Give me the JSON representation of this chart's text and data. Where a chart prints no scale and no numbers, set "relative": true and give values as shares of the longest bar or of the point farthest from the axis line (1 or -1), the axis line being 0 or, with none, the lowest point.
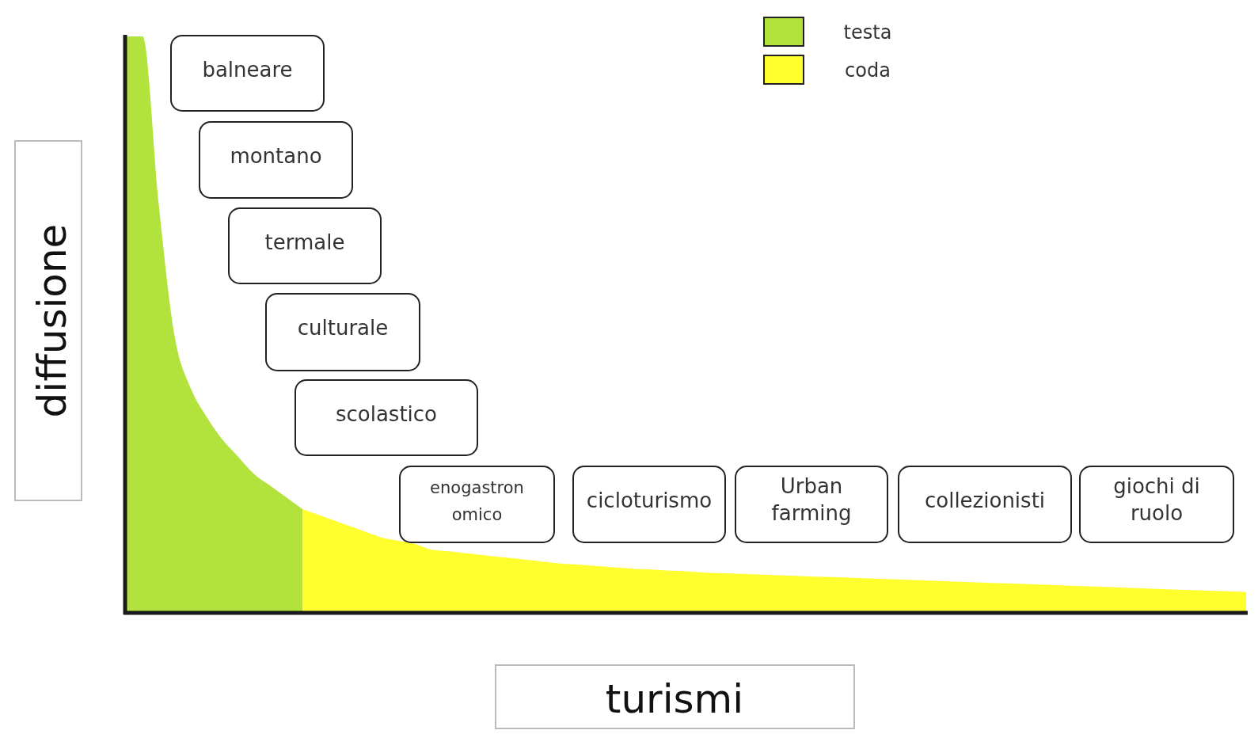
{
  "chart_data": {
    "type": "area",
    "relative": true,
    "xlabel": "turismi",
    "ylabel": "diffusione",
    "legend": "top right",
    "categories": [
      null,
      null,
      null,
      null,
      null,
      null,
      null,
      null,
      null,
      null,
      null,
      null,
      null,
      null,
      null,
      null,
      null,
      null,
      null,
      null,
      null,
      null,
      null,
      null,
      null,
      null,
      null,
      null,
      null,
      null,
      null,
      null,
      null,
      null,
      null,
      null,
      null,
      null,
      null,
      null,
      null,
      null,
      null,
      null,
      null,
      null,
      null,
      null,
      null,
      null,
      null,
      null,
      null,
      null,
      null,
      null,
      null,
      null,
      null,
      null,
      null,
      null,
      null,
      null,
      null,
      null,
      null,
      null,
      null,
      null,
      null
    ],
    "series": [
      {
        "name": "testa",
        "color": "#b2e23c",
        "values": [
          1,
          1,
          0.71,
          0.48,
          0.39,
          0.34,
          0.3,
          0.27,
          0.24,
          0.22,
          0.2,
          0.18,
          null,
          null,
          null,
          null,
          null,
          null,
          null,
          null,
          null,
          null,
          null,
          null,
          null,
          null,
          null,
          null,
          null,
          null,
          null,
          null,
          null,
          null,
          null,
          null,
          null,
          null,
          null,
          null,
          null,
          null,
          null,
          null,
          null,
          null,
          null,
          null,
          null,
          null,
          null,
          null,
          null,
          null,
          null,
          null,
          null,
          null,
          null,
          null,
          null,
          null,
          null,
          null,
          null,
          null,
          null,
          null,
          null,
          null,
          null
        ]
      },
      {
        "name": "coda",
        "color": "#ffff2e",
        "values": [
          null,
          null,
          null,
          null,
          null,
          null,
          null,
          null,
          null,
          null,
          null,
          0.18,
          0.17,
          0.16,
          0.15,
          0.14,
          0.13,
          0.125,
          0.12,
          0.11,
          0.107,
          0.104,
          0.101,
          0.098,
          0.095,
          0.092,
          0.089,
          0.086,
          0.084,
          0.082,
          0.08,
          0.078,
          0.076,
          0.075,
          0.073,
          0.072,
          0.07,
          0.069,
          0.068,
          0.067,
          0.066,
          0.065,
          0.064,
          0.063,
          0.062,
          0.061,
          0.06,
          0.059,
          0.058,
          0.057,
          0.056,
          0.055,
          0.054,
          0.053,
          0.052,
          0.051,
          0.05,
          0.049,
          0.048,
          0.047,
          0.046,
          0.045,
          0.044,
          0.043,
          0.042,
          0.041,
          0.04,
          0.039,
          0.038,
          0.037,
          0.036
        ]
      }
    ],
    "annotations": [
      "balneare",
      "montano",
      "termale",
      "culturale",
      "scolastico",
      "enogastron\nomico",
      "cicloturismo",
      "Urban\nfarming",
      "collezionisti",
      "giochi di\nruolo"
    ]
  }
}
